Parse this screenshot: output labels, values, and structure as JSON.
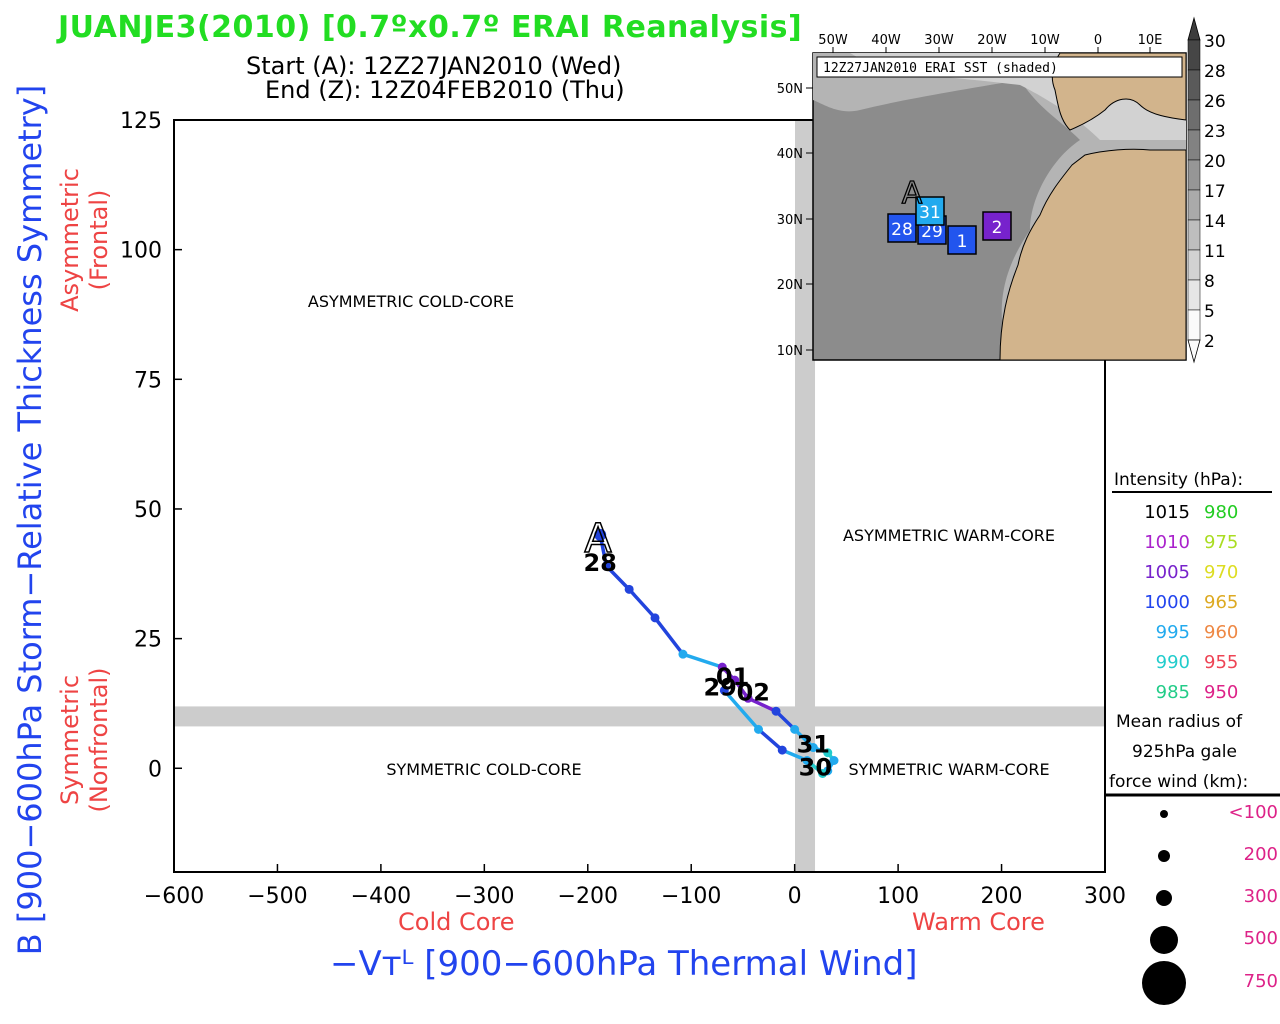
{
  "header": {
    "title": "JUANJE3(2010) [0.7ºx0.7º ERAI Reanalysis]",
    "start_line": "Start (A): 12Z27JAN2010 (Wed)",
    "end_line": "End (Z): 12Z04FEB2010 (Thu)"
  },
  "colors": {
    "title": "#22dd22",
    "axis_blue": "#2244ee",
    "label_red": "#ee4444",
    "track_dark": "#2244dd",
    "track_light": "#22aaee",
    "purple": "#7722cc",
    "divider": "#cccccc",
    "land": "#d2b48c"
  },
  "chart_data": {
    "type": "scatter",
    "title": "JUANJE3(2010) [0.7ºx0.7º ERAI Reanalysis]",
    "xlabel": "−Vᴛᴸ [900−600hPa Thermal Wind]",
    "ylabel": "B [900−600hPa Storm−Relative Thickness Symmetry]",
    "xlim": [
      -600,
      300
    ],
    "ylim": [
      -20,
      125
    ],
    "xticks": [
      -600,
      -500,
      -400,
      -300,
      -200,
      -100,
      0,
      100,
      200,
      300
    ],
    "xtick_labels": [
      "−600",
      "−500",
      "−400",
      "−300",
      "−200",
      "−100",
      "0",
      "100",
      "200",
      "300"
    ],
    "yticks": [
      0,
      25,
      50,
      75,
      100,
      125
    ],
    "ytick_labels": [
      "0",
      "25",
      "50",
      "75",
      "100",
      "125"
    ],
    "x_sub_left": "Cold Core",
    "x_sub_right": "Warm Core",
    "y_sub_top": [
      "Asymmetric",
      "(Frontal)"
    ],
    "y_sub_bottom": [
      "Symmetric",
      "(Nonfrontal)"
    ],
    "quadrants": {
      "top_left": "ASYMMETRIC COLD-CORE",
      "top_right": "ASYMMETRIC WARM-CORE",
      "bottom_left": "SYMMETRIC COLD-CORE",
      "bottom_right": "SYMMETRIC WARM-CORE"
    },
    "dividers": {
      "x": 10,
      "y": 10
    },
    "track": [
      {
        "x": -188,
        "y": 45,
        "c": "#2244dd"
      },
      {
        "x": -182,
        "y": 39,
        "c": "#2244dd"
      },
      {
        "x": -160,
        "y": 34.5,
        "c": "#2244dd"
      },
      {
        "x": -135,
        "y": 29,
        "c": "#2244dd"
      },
      {
        "x": -108,
        "y": 22,
        "c": "#22aaee"
      },
      {
        "x": -70,
        "y": 19.5,
        "c": "#7722cc"
      },
      {
        "x": -58,
        "y": 17,
        "c": "#7722cc"
      },
      {
        "x": -45,
        "y": 13.5,
        "c": "#7722cc"
      },
      {
        "x": -18,
        "y": 11,
        "c": "#2244dd"
      },
      {
        "x": 0,
        "y": 7.5,
        "c": "#22aaee"
      },
      {
        "x": 18,
        "y": 4,
        "c": "#22aaee"
      },
      {
        "x": 32,
        "y": 3,
        "c": "#22cccc"
      },
      {
        "x": 38,
        "y": 1.5,
        "c": "#22aaee"
      },
      {
        "x": 32,
        "y": -0.5,
        "c": "#22aaee"
      },
      {
        "x": 27,
        "y": -1,
        "c": "#22cccc"
      },
      {
        "x": 12,
        "y": 1.5,
        "c": "#22aaee"
      },
      {
        "x": -12,
        "y": 3.5,
        "c": "#2244dd"
      },
      {
        "x": -35,
        "y": 7.5,
        "c": "#22aaee"
      },
      {
        "x": -68,
        "y": 15,
        "c": "#2244dd"
      }
    ],
    "start_marker": {
      "x": -190,
      "y": 44,
      "label": "A"
    },
    "day_labels": [
      {
        "x": -188,
        "y": 40,
        "text": "28"
      },
      {
        "x": -60,
        "y": 18,
        "text": "01"
      },
      {
        "x": -72,
        "y": 16,
        "text": "29"
      },
      {
        "x": -40,
        "y": 15,
        "text": "02"
      },
      {
        "x": 18,
        "y": 5,
        "text": "31"
      },
      {
        "x": 20,
        "y": 0.5,
        "text": "30"
      }
    ]
  },
  "inset": {
    "title": "12Z27JAN2010 ERAI SST (shaded)",
    "lon_labels": [
      "50W",
      "40W",
      "30W",
      "20W",
      "10W",
      "0",
      "10E"
    ],
    "lat_labels": [
      "50N",
      "40N",
      "30N",
      "20N",
      "10N"
    ],
    "start_label": "A",
    "boxes": [
      {
        "text": "28",
        "c": "#2255ee"
      },
      {
        "text": "29",
        "c": "#2255ee"
      },
      {
        "text": "31",
        "c": "#22aaee"
      },
      {
        "text": "1",
        "c": "#2255ee"
      },
      {
        "text": "2",
        "c": "#7722cc"
      }
    ]
  },
  "sst_colorbar": {
    "labels": [
      "30",
      "28",
      "26",
      "23",
      "20",
      "17",
      "14",
      "11",
      "8",
      "5",
      "2"
    ]
  },
  "legend": {
    "intensity_title": "Intensity (hPa):",
    "intensity_rows": [
      {
        "left": "1015",
        "left_c": "#000000",
        "right": "980",
        "right_c": "#22cc22"
      },
      {
        "left": "1010",
        "left_c": "#aa22cc",
        "right": "975",
        "right_c": "#aadd22"
      },
      {
        "left": "1005",
        "left_c": "#7722cc",
        "right": "970",
        "right_c": "#dddd22"
      },
      {
        "left": "1000",
        "left_c": "#2244ee",
        "right": "965",
        "right_c": "#ddaa22"
      },
      {
        "left": "995",
        "left_c": "#22aaee",
        "right": "960",
        "right_c": "#ee8844"
      },
      {
        "left": "990",
        "left_c": "#22cccc",
        "right": "955",
        "right_c": "#ee4455"
      },
      {
        "left": "985",
        "left_c": "#22cc88",
        "right": "950",
        "right_c": "#dd2288"
      }
    ],
    "radius_title": [
      "Mean radius of",
      "925hPa gale",
      "force wind (km):"
    ],
    "radius_rows": [
      {
        "label": "<100",
        "size": 1
      },
      {
        "label": "200",
        "size": 2
      },
      {
        "label": "300",
        "size": 3
      },
      {
        "label": "500",
        "size": 4
      },
      {
        "label": "750",
        "size": 5
      }
    ]
  }
}
